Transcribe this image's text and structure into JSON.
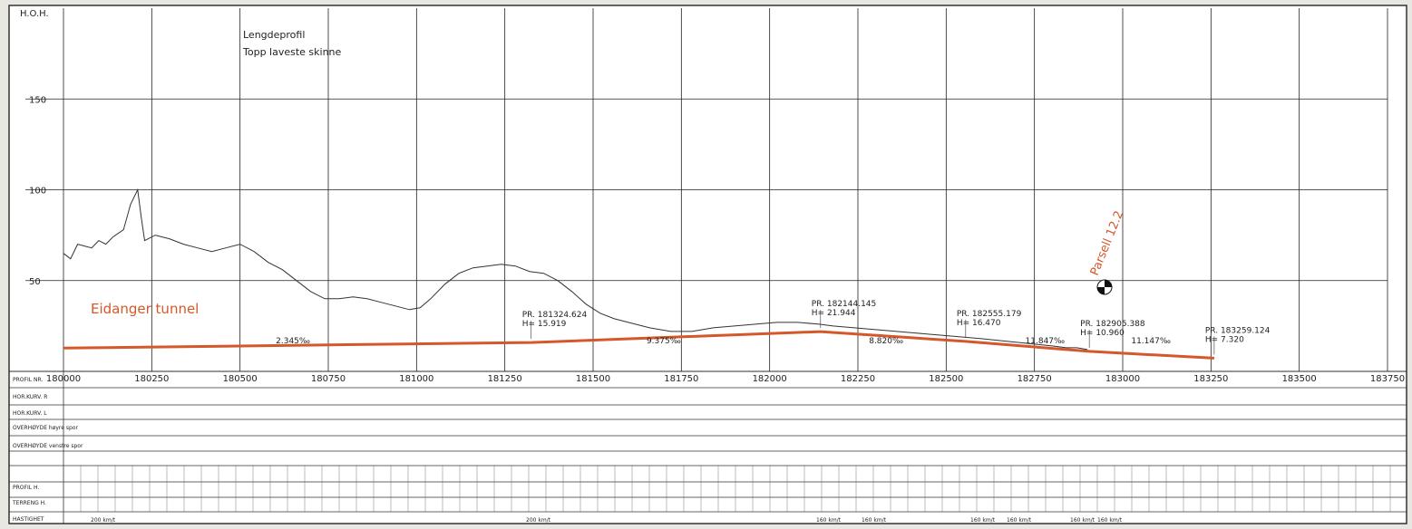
{
  "chart_data": {
    "type": "line",
    "title": "Lengdeprofil",
    "subtitle": "Topp laveste skinne",
    "ylabel": "H.O.H.",
    "x_ticks": [
      180000,
      180250,
      180500,
      180750,
      181000,
      181250,
      181500,
      181750,
      182000,
      182250,
      182500,
      182750,
      183000,
      183250,
      183500,
      183750
    ],
    "x_tick_labels": [
      "180000",
      "180250",
      "180500",
      "180750",
      "181000",
      "181250",
      "181500",
      "181750",
      "182000",
      "182250",
      "182500",
      "182750",
      "183000",
      "183250",
      "183500",
      "183750"
    ],
    "y_ticks": [
      50,
      100,
      150
    ],
    "y_tick_labels": [
      "50",
      "100",
      "150"
    ],
    "xlim": [
      180000,
      183750
    ],
    "ylim": [
      0,
      200
    ],
    "grid": true,
    "series": [
      {
        "name": "terrain",
        "color": "#333333",
        "points": [
          [
            180000,
            65
          ],
          [
            180020,
            62
          ],
          [
            180040,
            70
          ],
          [
            180080,
            68
          ],
          [
            180100,
            72
          ],
          [
            180120,
            70
          ],
          [
            180140,
            74
          ],
          [
            180170,
            78
          ],
          [
            180190,
            92
          ],
          [
            180210,
            100
          ],
          [
            180220,
            85
          ],
          [
            180230,
            72
          ],
          [
            180260,
            75
          ],
          [
            180300,
            73
          ],
          [
            180340,
            70
          ],
          [
            180380,
            68
          ],
          [
            180420,
            66
          ],
          [
            180460,
            68
          ],
          [
            180500,
            70
          ],
          [
            180540,
            66
          ],
          [
            180580,
            60
          ],
          [
            180620,
            56
          ],
          [
            180660,
            50
          ],
          [
            180700,
            44
          ],
          [
            180740,
            40
          ],
          [
            180780,
            40
          ],
          [
            180820,
            41
          ],
          [
            180860,
            40
          ],
          [
            180900,
            38
          ],
          [
            180940,
            36
          ],
          [
            180980,
            34
          ],
          [
            181010,
            35
          ],
          [
            181040,
            40
          ],
          [
            181080,
            48
          ],
          [
            181120,
            54
          ],
          [
            181160,
            57
          ],
          [
            181200,
            58
          ],
          [
            181240,
            59
          ],
          [
            181280,
            58
          ],
          [
            181320,
            55
          ],
          [
            181360,
            54
          ],
          [
            181400,
            50
          ],
          [
            181440,
            44
          ],
          [
            181480,
            37
          ],
          [
            181520,
            32
          ],
          [
            181560,
            29
          ],
          [
            181600,
            27
          ],
          [
            181660,
            24
          ],
          [
            181720,
            22
          ],
          [
            181780,
            22
          ],
          [
            181840,
            24
          ],
          [
            181900,
            25
          ],
          [
            181960,
            26
          ],
          [
            182020,
            27
          ],
          [
            182080,
            27
          ],
          [
            182140,
            26
          ],
          [
            182180,
            25
          ],
          [
            182240,
            24
          ],
          [
            182300,
            23
          ],
          [
            182360,
            22
          ],
          [
            182420,
            21
          ],
          [
            182480,
            20
          ],
          [
            182540,
            19
          ],
          [
            182600,
            18
          ],
          [
            182650,
            17
          ],
          [
            182700,
            16
          ],
          [
            182750,
            15
          ],
          [
            182800,
            14
          ],
          [
            182840,
            13
          ],
          [
            182870,
            13
          ],
          [
            182900,
            12
          ]
        ]
      },
      {
        "name": "Eidanger tunnel",
        "color": "#d4582a",
        "points": [
          [
            180000,
            12.8
          ],
          [
            181324.624,
            15.9
          ],
          [
            182144.145,
            21.9
          ],
          [
            182555.179,
            16.5
          ],
          [
            182905.388,
            11.0
          ],
          [
            183259.124,
            7.3
          ]
        ]
      }
    ],
    "annotations": [
      {
        "text": "PR. 181324.624",
        "text2": "H= 15.919",
        "x": 181324.624,
        "y": 15.9
      },
      {
        "text": "PR. 182144.145",
        "text2": "H= 21.944",
        "x": 182144.145,
        "y": 21.9
      },
      {
        "text": "PR. 182555.179",
        "text2": "H= 16.470",
        "x": 182555.179,
        "y": 16.5
      },
      {
        "text": "PR. 182905.388",
        "text2": "H= 10.960",
        "x": 182905.388,
        "y": 11.0
      },
      {
        "text": "PR. 183259.124",
        "text2": "H= 7.320",
        "x": 183259.124,
        "y": 7.3
      }
    ],
    "slopes": [
      "2.345‰",
      "9.375‰",
      "8.820‰",
      "11.847‰",
      "11.147‰"
    ],
    "tunnel_label": "Eidanger tunnel",
    "parsell_label": "Parsell 12.2",
    "table_rows": [
      "PROFIL NR.",
      "HOR.KURV. R",
      "HOR.KURV. L",
      "OVERHØYDE høyre spor",
      "OVERHØYDE venstre spor",
      "PROFIL H.",
      "TERRENG H.",
      "HASTIGHET"
    ],
    "speed_labels": [
      "200 km/t",
      "200 km/t",
      "160 km/t",
      "160 km/t",
      "160 km/t",
      "160 km/t",
      "160 km/t",
      "160 km/t"
    ]
  }
}
